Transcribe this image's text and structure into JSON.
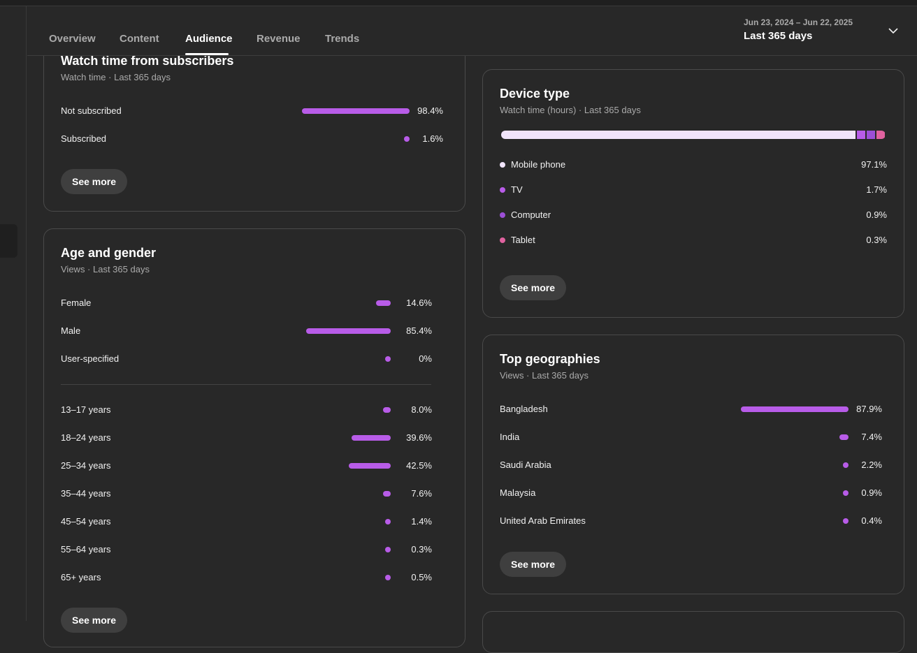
{
  "header": {
    "tabs": [
      {
        "label": "Overview",
        "active": false
      },
      {
        "label": "Content",
        "active": false
      },
      {
        "label": "Audience",
        "active": true
      },
      {
        "label": "Revenue",
        "active": false
      },
      {
        "label": "Trends",
        "active": false
      }
    ],
    "date_range": "Jun 23, 2024 – Jun 22, 2025",
    "date_label": "Last 365 days"
  },
  "subscribers": {
    "title": "Watch time from subscribers",
    "subtitle": "Watch time · Last 365 days",
    "rows": [
      {
        "label": "Not subscribed",
        "pct": "98.4%",
        "value": 98.4
      },
      {
        "label": "Subscribed",
        "pct": "1.6%",
        "value": 1.6
      }
    ],
    "see_more": "See more"
  },
  "age_gender": {
    "title": "Age and gender",
    "subtitle": "Views · Last 365 days",
    "gender": [
      {
        "label": "Female",
        "pct": "14.6%",
        "value": 14.6
      },
      {
        "label": "Male",
        "pct": "85.4%",
        "value": 85.4
      },
      {
        "label": "User-specified",
        "pct": "0%",
        "value": 0
      }
    ],
    "ages": [
      {
        "label": "13–17 years",
        "pct": "8.0%",
        "value": 8.0
      },
      {
        "label": "18–24 years",
        "pct": "39.6%",
        "value": 39.6
      },
      {
        "label": "25–34 years",
        "pct": "42.5%",
        "value": 42.5
      },
      {
        "label": "35–44 years",
        "pct": "7.6%",
        "value": 7.6
      },
      {
        "label": "45–54 years",
        "pct": "1.4%",
        "value": 1.4
      },
      {
        "label": "55–64 years",
        "pct": "0.3%",
        "value": 0.3
      },
      {
        "label": "65+ years",
        "pct": "0.5%",
        "value": 0.5
      }
    ],
    "see_more": "See more"
  },
  "device": {
    "title": "Device type",
    "subtitle": "Watch time (hours) · Last 365 days",
    "rows": [
      {
        "label": "Mobile phone",
        "pct": "97.1%",
        "value": 97.1,
        "color": "#f1e4fb"
      },
      {
        "label": "TV",
        "pct": "1.7%",
        "value": 1.7,
        "color": "#b85ce8"
      },
      {
        "label": "Computer",
        "pct": "0.9%",
        "value": 0.9,
        "color": "#9c4fd6"
      },
      {
        "label": "Tablet",
        "pct": "0.3%",
        "value": 0.3,
        "color": "#e0629f"
      }
    ],
    "see_more": "See more"
  },
  "geo": {
    "title": "Top geographies",
    "subtitle": "Views · Last 365 days",
    "rows": [
      {
        "label": "Bangladesh",
        "pct": "87.9%",
        "value": 87.9
      },
      {
        "label": "India",
        "pct": "7.4%",
        "value": 7.4
      },
      {
        "label": "Saudi Arabia",
        "pct": "2.2%",
        "value": 2.2
      },
      {
        "label": "Malaysia",
        "pct": "0.9%",
        "value": 0.9
      },
      {
        "label": "United Arab Emirates",
        "pct": "0.4%",
        "value": 0.4
      }
    ],
    "see_more": "See more"
  },
  "colors": {
    "accent": "#b85ce8"
  }
}
